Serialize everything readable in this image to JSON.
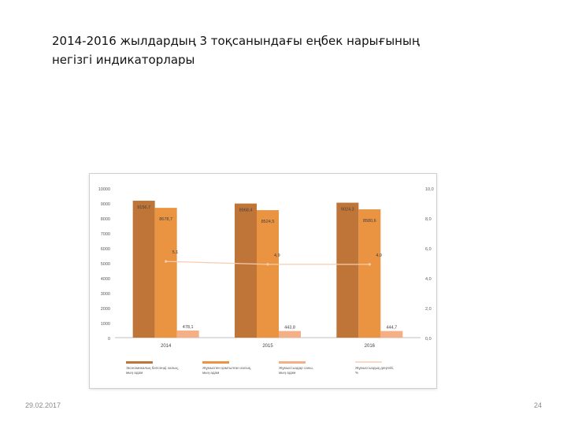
{
  "slide": {
    "title_line1": "2014-2016 жылдардың 3 тоқсанындағы еңбек нарығының",
    "title_line2": "негізгі индикаторлары",
    "date": "29.02.2017",
    "page_number": "24"
  },
  "chart_data": {
    "type": "bar",
    "categories": [
      "2014",
      "2015",
      "2016"
    ],
    "y_left_ticks": [
      "0",
      "1000",
      "2000",
      "3000",
      "4000",
      "5000",
      "6000",
      "7000",
      "8000",
      "9000",
      "10000"
    ],
    "y_right_ticks": [
      "0,0",
      "2,0",
      "4,0",
      "6,0",
      "8,0",
      "10,0"
    ],
    "ylim": [
      0,
      10000
    ],
    "y2lim": [
      0,
      10
    ],
    "series": [
      {
        "name": "Экономикалық белсенді халық, мың адам",
        "kind": "bar",
        "color": "#c07538",
        "values": [
          9156.7,
          8968.4,
          9024.3
        ],
        "labels": [
          "9156,7",
          "8968,4",
          "9024,3"
        ]
      },
      {
        "name": "Жұмыспен қамтылған халық, мың адам",
        "kind": "bar",
        "color": "#ea9340",
        "values": [
          8678.7,
          8524.5,
          8580.6
        ],
        "labels": [
          "8678,7",
          "8524,5",
          "8580,6"
        ]
      },
      {
        "name": "Жұмыссыздар саны, мың адам",
        "kind": "bar",
        "color": "#f4b084",
        "values": [
          478.1,
          443.8,
          444.7
        ],
        "labels": [
          "478,1",
          "443,8",
          "444,7"
        ]
      },
      {
        "name": "Жұмыссыздық деңгейі, %",
        "kind": "line",
        "axis": "right",
        "color": "#f8cbad",
        "values": [
          5.1,
          4.9,
          4.9
        ],
        "labels": [
          "5,1",
          "4,9",
          "4,9"
        ]
      }
    ],
    "legend_position": "bottom",
    "grid": false
  }
}
